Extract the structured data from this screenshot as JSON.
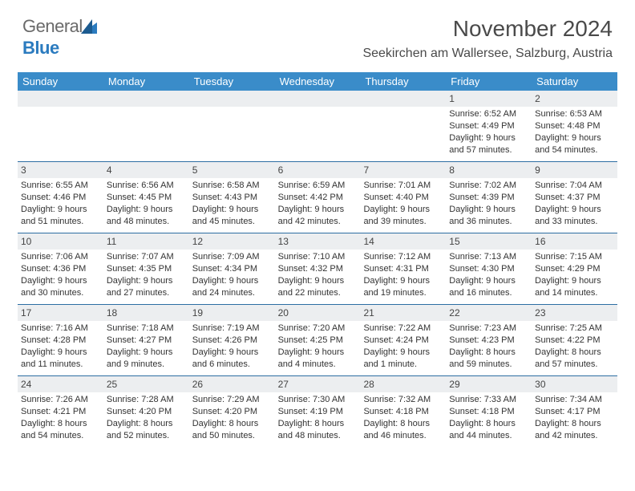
{
  "logo": {
    "general": "General",
    "blue": "Blue"
  },
  "title": "November 2024",
  "location": "Seekirchen am Wallersee, Salzburg, Austria",
  "colors": {
    "header_bg": "#3a8cc9",
    "header_text": "#ffffff",
    "daynum_bg": "#eceef0",
    "row_border": "#2d6ea3",
    "text": "#333333",
    "logo_blue": "#2b7bbf",
    "logo_gray": "#6a6a6a"
  },
  "day_headers": [
    "Sunday",
    "Monday",
    "Tuesday",
    "Wednesday",
    "Thursday",
    "Friday",
    "Saturday"
  ],
  "weeks": [
    [
      {
        "n": "",
        "sr": "",
        "ss": "",
        "dl": ""
      },
      {
        "n": "",
        "sr": "",
        "ss": "",
        "dl": ""
      },
      {
        "n": "",
        "sr": "",
        "ss": "",
        "dl": ""
      },
      {
        "n": "",
        "sr": "",
        "ss": "",
        "dl": ""
      },
      {
        "n": "",
        "sr": "",
        "ss": "",
        "dl": ""
      },
      {
        "n": "1",
        "sr": "Sunrise: 6:52 AM",
        "ss": "Sunset: 4:49 PM",
        "dl": "Daylight: 9 hours and 57 minutes."
      },
      {
        "n": "2",
        "sr": "Sunrise: 6:53 AM",
        "ss": "Sunset: 4:48 PM",
        "dl": "Daylight: 9 hours and 54 minutes."
      }
    ],
    [
      {
        "n": "3",
        "sr": "Sunrise: 6:55 AM",
        "ss": "Sunset: 4:46 PM",
        "dl": "Daylight: 9 hours and 51 minutes."
      },
      {
        "n": "4",
        "sr": "Sunrise: 6:56 AM",
        "ss": "Sunset: 4:45 PM",
        "dl": "Daylight: 9 hours and 48 minutes."
      },
      {
        "n": "5",
        "sr": "Sunrise: 6:58 AM",
        "ss": "Sunset: 4:43 PM",
        "dl": "Daylight: 9 hours and 45 minutes."
      },
      {
        "n": "6",
        "sr": "Sunrise: 6:59 AM",
        "ss": "Sunset: 4:42 PM",
        "dl": "Daylight: 9 hours and 42 minutes."
      },
      {
        "n": "7",
        "sr": "Sunrise: 7:01 AM",
        "ss": "Sunset: 4:40 PM",
        "dl": "Daylight: 9 hours and 39 minutes."
      },
      {
        "n": "8",
        "sr": "Sunrise: 7:02 AM",
        "ss": "Sunset: 4:39 PM",
        "dl": "Daylight: 9 hours and 36 minutes."
      },
      {
        "n": "9",
        "sr": "Sunrise: 7:04 AM",
        "ss": "Sunset: 4:37 PM",
        "dl": "Daylight: 9 hours and 33 minutes."
      }
    ],
    [
      {
        "n": "10",
        "sr": "Sunrise: 7:06 AM",
        "ss": "Sunset: 4:36 PM",
        "dl": "Daylight: 9 hours and 30 minutes."
      },
      {
        "n": "11",
        "sr": "Sunrise: 7:07 AM",
        "ss": "Sunset: 4:35 PM",
        "dl": "Daylight: 9 hours and 27 minutes."
      },
      {
        "n": "12",
        "sr": "Sunrise: 7:09 AM",
        "ss": "Sunset: 4:34 PM",
        "dl": "Daylight: 9 hours and 24 minutes."
      },
      {
        "n": "13",
        "sr": "Sunrise: 7:10 AM",
        "ss": "Sunset: 4:32 PM",
        "dl": "Daylight: 9 hours and 22 minutes."
      },
      {
        "n": "14",
        "sr": "Sunrise: 7:12 AM",
        "ss": "Sunset: 4:31 PM",
        "dl": "Daylight: 9 hours and 19 minutes."
      },
      {
        "n": "15",
        "sr": "Sunrise: 7:13 AM",
        "ss": "Sunset: 4:30 PM",
        "dl": "Daylight: 9 hours and 16 minutes."
      },
      {
        "n": "16",
        "sr": "Sunrise: 7:15 AM",
        "ss": "Sunset: 4:29 PM",
        "dl": "Daylight: 9 hours and 14 minutes."
      }
    ],
    [
      {
        "n": "17",
        "sr": "Sunrise: 7:16 AM",
        "ss": "Sunset: 4:28 PM",
        "dl": "Daylight: 9 hours and 11 minutes."
      },
      {
        "n": "18",
        "sr": "Sunrise: 7:18 AM",
        "ss": "Sunset: 4:27 PM",
        "dl": "Daylight: 9 hours and 9 minutes."
      },
      {
        "n": "19",
        "sr": "Sunrise: 7:19 AM",
        "ss": "Sunset: 4:26 PM",
        "dl": "Daylight: 9 hours and 6 minutes."
      },
      {
        "n": "20",
        "sr": "Sunrise: 7:20 AM",
        "ss": "Sunset: 4:25 PM",
        "dl": "Daylight: 9 hours and 4 minutes."
      },
      {
        "n": "21",
        "sr": "Sunrise: 7:22 AM",
        "ss": "Sunset: 4:24 PM",
        "dl": "Daylight: 9 hours and 1 minute."
      },
      {
        "n": "22",
        "sr": "Sunrise: 7:23 AM",
        "ss": "Sunset: 4:23 PM",
        "dl": "Daylight: 8 hours and 59 minutes."
      },
      {
        "n": "23",
        "sr": "Sunrise: 7:25 AM",
        "ss": "Sunset: 4:22 PM",
        "dl": "Daylight: 8 hours and 57 minutes."
      }
    ],
    [
      {
        "n": "24",
        "sr": "Sunrise: 7:26 AM",
        "ss": "Sunset: 4:21 PM",
        "dl": "Daylight: 8 hours and 54 minutes."
      },
      {
        "n": "25",
        "sr": "Sunrise: 7:28 AM",
        "ss": "Sunset: 4:20 PM",
        "dl": "Daylight: 8 hours and 52 minutes."
      },
      {
        "n": "26",
        "sr": "Sunrise: 7:29 AM",
        "ss": "Sunset: 4:20 PM",
        "dl": "Daylight: 8 hours and 50 minutes."
      },
      {
        "n": "27",
        "sr": "Sunrise: 7:30 AM",
        "ss": "Sunset: 4:19 PM",
        "dl": "Daylight: 8 hours and 48 minutes."
      },
      {
        "n": "28",
        "sr": "Sunrise: 7:32 AM",
        "ss": "Sunset: 4:18 PM",
        "dl": "Daylight: 8 hours and 46 minutes."
      },
      {
        "n": "29",
        "sr": "Sunrise: 7:33 AM",
        "ss": "Sunset: 4:18 PM",
        "dl": "Daylight: 8 hours and 44 minutes."
      },
      {
        "n": "30",
        "sr": "Sunrise: 7:34 AM",
        "ss": "Sunset: 4:17 PM",
        "dl": "Daylight: 8 hours and 42 minutes."
      }
    ]
  ]
}
